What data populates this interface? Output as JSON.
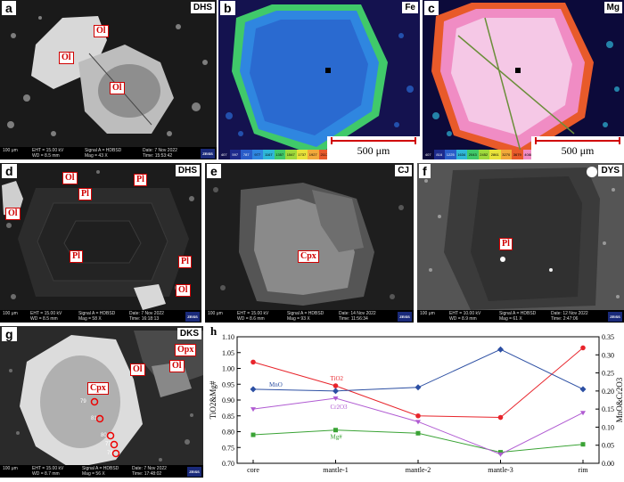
{
  "panels": [
    {
      "id": "a",
      "label": "a",
      "site": "DHS",
      "minerals": [
        "Ol",
        "Ol",
        "Ol"
      ],
      "info": {
        "scale": "100 μm",
        "eht": "EHT = 15.00 kV",
        "wd": "WD = 8.5 mm",
        "signal": "Signal A = HDBSD",
        "mag": "Mag = 43 X",
        "date": "Date: 7 Nov 2022",
        "time": "Time: 15:53:42"
      }
    },
    {
      "id": "b",
      "label": "b",
      "element": "Fe",
      "scale": "500 μm",
      "legend": [
        "407",
        "597",
        "787",
        "977",
        "1167",
        "1357",
        "1547",
        "1737",
        "1927",
        "2117",
        "2307",
        "2497"
      ]
    },
    {
      "id": "c",
      "label": "c",
      "element": "Mg",
      "scale": "500 μm",
      "legend": [
        "407",
        "816",
        "1225",
        "1634",
        "2043",
        "2452",
        "2861",
        "3270",
        "3679",
        "4088",
        "4497",
        "5255"
      ]
    },
    {
      "id": "d",
      "label": "d",
      "site": "DHS",
      "minerals": [
        "Ol",
        "Pl",
        "Pl",
        "Ol",
        "Pl",
        "Pl",
        "Ol"
      ],
      "info": {
        "scale": "100 μm",
        "eht": "EHT = 15.00 kV",
        "wd": "WD = 8.5 mm",
        "signal": "Signal A = HDBSD",
        "mag": "Mag = 58 X",
        "date": "Date: 7 Nov 2022",
        "time": "Time: 16:18:13"
      }
    },
    {
      "id": "e",
      "label": "e",
      "site": "CJ",
      "minerals": [
        "Cpx"
      ],
      "info": {
        "scale": "100 μm",
        "eht": "EHT = 15.00 kV",
        "wd": "WD = 8.6 mm",
        "signal": "Signal A = HDBSD",
        "mag": "Mag = 93 X",
        "date": "Date: 14 Nov 2022",
        "time": "Time: 11:56:34"
      }
    },
    {
      "id": "f",
      "label": "f",
      "site": "DYS",
      "minerals": [
        "Pl"
      ],
      "info": {
        "scale": "100 μm",
        "eht": "EHT = 10.00 kV",
        "wd": "WD = 8.9 mm",
        "signal": "Signal A = HDBSD",
        "mag": "Mag = 61 X",
        "date": "Date: 12 Nov 2022",
        "time": "Time: 2:47:06"
      }
    },
    {
      "id": "g",
      "label": "g",
      "site": "DKS",
      "minerals": [
        "Opx",
        "Ol",
        "Ol",
        "Cpx"
      ],
      "spots": [
        "79",
        "81",
        "80",
        "77",
        "78"
      ],
      "info": {
        "scale": "100 μm",
        "eht": "EHT = 15.00 kV",
        "wd": "WD = 8.7 mm",
        "signal": "Signal A = HDBSD",
        "mag": "Mag = 56 X",
        "date": "Date: 7 Nov 2022",
        "time": "Time: 17:48:02"
      }
    }
  ],
  "zeiss": "ZEISS",
  "chart_data": {
    "type": "line",
    "panel_label": "h",
    "categories": [
      "core",
      "mantle-1",
      "mantle-2",
      "mantle-3",
      "rim"
    ],
    "ylabel_left": "TiO2&Mg#",
    "ylabel_right": "MnO&Cr2O3",
    "ylim_left": [
      0.7,
      1.1
    ],
    "ylim_right": [
      0.0,
      0.35
    ],
    "yticks_left": [
      "0.70",
      "0.75",
      "0.80",
      "0.85",
      "0.90",
      "0.95",
      "1.00",
      "1.05",
      "1.10"
    ],
    "yticks_right": [
      "0.00",
      "0.05",
      "0.10",
      "0.15",
      "0.20",
      "0.25",
      "0.30",
      "0.35"
    ],
    "series": [
      {
        "name": "TiO2",
        "axis": "left",
        "color": "#e8242b",
        "values": [
          1.02,
          0.945,
          0.85,
          0.845,
          1.065
        ]
      },
      {
        "name": "Mg#",
        "axis": "left",
        "color": "#3aa335",
        "values": [
          0.79,
          0.805,
          0.795,
          0.735,
          0.76
        ]
      },
      {
        "name": "MnO",
        "axis": "right",
        "color": "#2c4fa3",
        "values": [
          0.205,
          0.2,
          0.21,
          0.315,
          0.205
        ]
      },
      {
        "name": "Cr2O3",
        "axis": "right",
        "color": "#b05bd2",
        "values": [
          0.15,
          0.18,
          0.115,
          0.025,
          0.14
        ]
      }
    ]
  }
}
